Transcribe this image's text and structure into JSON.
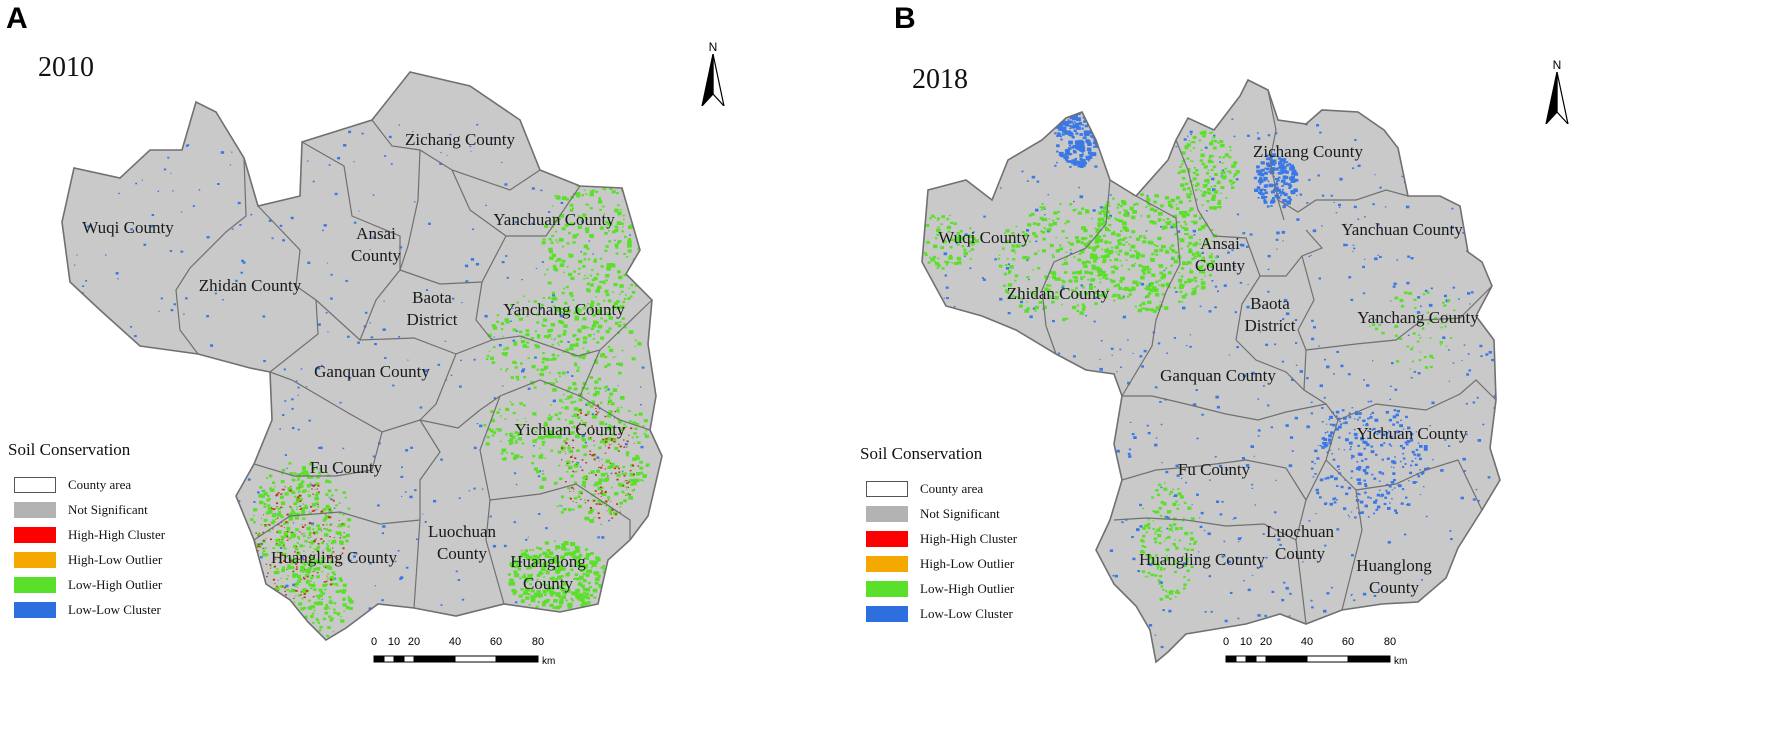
{
  "panels": [
    {
      "letter": "A",
      "year": "2010",
      "counties": [
        "Zichang County",
        "Wuqi County",
        "Ansai County",
        "Yanchuan County",
        "Zhidan County",
        "Baota District",
        "Yanchang County",
        "Ganquan County",
        "Yichuan County",
        "Fu County",
        "Luochuan County",
        "Huangling County",
        "Huanglong County"
      ],
      "pattern": "2010"
    },
    {
      "letter": "B",
      "year": "2018",
      "counties": [
        "Zichang County",
        "Wuqi County",
        "Ansai County",
        "Yanchuan County",
        "Zhidan County",
        "Baota District",
        "Yanchang County",
        "Ganquan County",
        "Yichuan County",
        "Fu County",
        "Luochuan County",
        "Huangling County",
        "Huanglong County"
      ],
      "pattern": "2018"
    }
  ],
  "county_labels": {
    "zichang": "Zichang County",
    "wuqi": "Wuqi County",
    "ansai_1": "Ansai",
    "ansai_2": "County",
    "yanchuan": "Yanchuan County",
    "zhidan": "Zhidan County",
    "baota_1": "Baota",
    "baota_2": "District",
    "yanchang": "Yanchang County",
    "ganquan": "Ganquan County",
    "yichuan": "Yichuan County",
    "fu": "Fu County",
    "luochuan_1": "Luochuan",
    "luochuan_2": "County",
    "huangling": "Huangling County",
    "huanglong_1": "Huanglong",
    "huanglong_2": "County"
  },
  "north_arrow": {
    "label": "N",
    "icon": "north-arrow-icon"
  },
  "legend": {
    "title": "Soil Conservation",
    "items": [
      {
        "label": "County area",
        "color": "#ffffff"
      },
      {
        "label": "Not Significant",
        "color": "#b3b3b3"
      },
      {
        "label": "High-High Cluster",
        "color": "#ff0000"
      },
      {
        "label": "High-Low Outlier",
        "color": "#f5a800"
      },
      {
        "label": "Low-High Outlier",
        "color": "#5ae02a"
      },
      {
        "label": "Low-Low Cluster",
        "color": "#2e6fe0"
      }
    ]
  },
  "scalebar": {
    "ticks": [
      "0",
      "10",
      "20",
      "40",
      "60",
      "80"
    ],
    "unit": "km"
  },
  "colors": {
    "land": "#c9c9c9",
    "border": "#707070",
    "green": "#5ae02a",
    "blue": "#3a78e6",
    "red": "#b83a1a"
  }
}
